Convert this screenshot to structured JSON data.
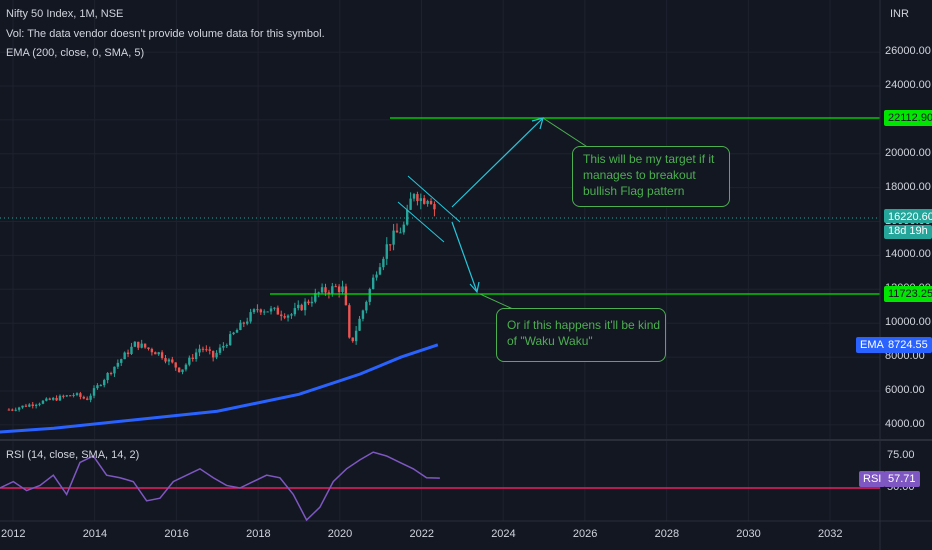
{
  "legend": {
    "symbol": "Nifty 50 Index, 1M, NSE",
    "volume_note": "Vol: The data vendor doesn't provide volume data for this symbol.",
    "ema": "EMA (200, close, 0, SMA, 5)",
    "rsi": "RSI (14, close, SMA, 14, 2)"
  },
  "price_axis": {
    "currency": "INR",
    "ticks": [
      "26000.00",
      "24000.00",
      "22000.00",
      "20000.00",
      "18000.00",
      "16000.00",
      "14000.00",
      "12000.00",
      "10000.00",
      "8000.00",
      "6000.00",
      "4000.00"
    ]
  },
  "rsi_axis": {
    "ticks": [
      "75.00",
      "50.00"
    ]
  },
  "time_axis": {
    "ticks": [
      "2012",
      "2014",
      "2016",
      "2018",
      "2020",
      "2022",
      "2024",
      "2026",
      "2028",
      "2030",
      "2032"
    ]
  },
  "badges": {
    "target": "22112.90",
    "current_price": "16220.60",
    "countdown": "18d 19h",
    "support": "11723.25",
    "ema_label": "EMA",
    "ema_value": "8724.55",
    "rsi_label": "RSI",
    "rsi_value": "57.71"
  },
  "annotations": {
    "target_note": "This will be my target if it manages to breakout bullish Flag pattern",
    "support_note": "Or if this happens it'll be kind of \"Waku Waku\""
  },
  "colors": {
    "background": "#131722",
    "up_candle": "#26a69a",
    "down_candle": "#ef5350",
    "ema_line": "#2962ff",
    "rsi_line": "#7e57c2",
    "horizontal_lines": "#00e600",
    "arrows": "#26c6da",
    "rsi_baseline": "#e91e63"
  },
  "chart_data": {
    "type": "candlestick",
    "ema": [
      [
        2011.2,
        3500
      ],
      [
        2013,
        3800
      ],
      [
        2015,
        4300
      ],
      [
        2017,
        4800
      ],
      [
        2019,
        5800
      ],
      [
        2020.5,
        7000
      ],
      [
        2021.5,
        8000
      ],
      [
        2022.4,
        8724.55
      ]
    ],
    "rsi": [
      50,
      55,
      48,
      52,
      60,
      45,
      70,
      75,
      60,
      58,
      55,
      40,
      42,
      55,
      60,
      65,
      58,
      52,
      50,
      55,
      60,
      58,
      45,
      25,
      35,
      55,
      65,
      72,
      78,
      75,
      70,
      65,
      58,
      57.71
    ],
    "levels": [
      22112.9,
      11723.25
    ],
    "current_price": 16220.6,
    "x_range": [
      2011.9,
      2033.3
    ],
    "y_range": [
      3400,
      27500
    ]
  }
}
